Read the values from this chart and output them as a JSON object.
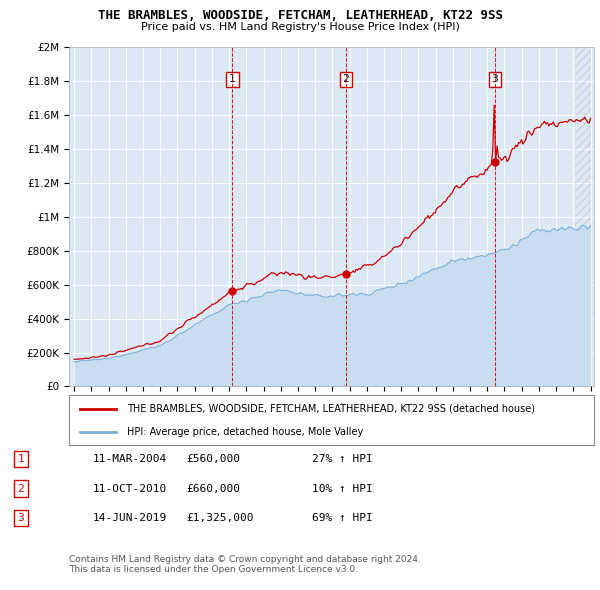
{
  "title": "THE BRAMBLES, WOODSIDE, FETCHAM, LEATHERHEAD, KT22 9SS",
  "subtitle": "Price paid vs. HM Land Registry's House Price Index (HPI)",
  "legend_line1": "THE BRAMBLES, WOODSIDE, FETCHAM, LEATHERHEAD, KT22 9SS (detached house)",
  "legend_line2": "HPI: Average price, detached house, Mole Valley",
  "footer1": "Contains HM Land Registry data © Crown copyright and database right 2024.",
  "footer2": "This data is licensed under the Open Government Licence v3.0.",
  "sale_labels": [
    "1",
    "2",
    "3"
  ],
  "sale_dates_display": [
    "11-MAR-2004",
    "11-OCT-2010",
    "14-JUN-2019"
  ],
  "sale_prices_display": [
    "£560,000",
    "£660,000",
    "£1,325,000"
  ],
  "sale_hpi_display": [
    "27% ↑ HPI",
    "10% ↑ HPI",
    "69% ↑ HPI"
  ],
  "sale_years": [
    2004.19,
    2010.78,
    2019.44
  ],
  "sale_prices": [
    560000,
    660000,
    1325000
  ],
  "ylim": [
    0,
    2000000
  ],
  "yticks": [
    0,
    200000,
    400000,
    600000,
    800000,
    1000000,
    1200000,
    1400000,
    1600000,
    1800000,
    2000000
  ],
  "ytick_labels": [
    "£0",
    "£200K",
    "£400K",
    "£600K",
    "£800K",
    "£1M",
    "£1.2M",
    "£1.4M",
    "£1.6M",
    "£1.8M",
    "£2M"
  ],
  "hpi_color": "#7bafd4",
  "hpi_fill_color": "#c8ddf0",
  "price_color": "#cc0000",
  "vline_color": "#cc0000",
  "bg_chart": "#dce9f5",
  "bg_figure": "#ffffff",
  "grid_color": "#ffffff",
  "hatch_color": "#c0c8d0"
}
